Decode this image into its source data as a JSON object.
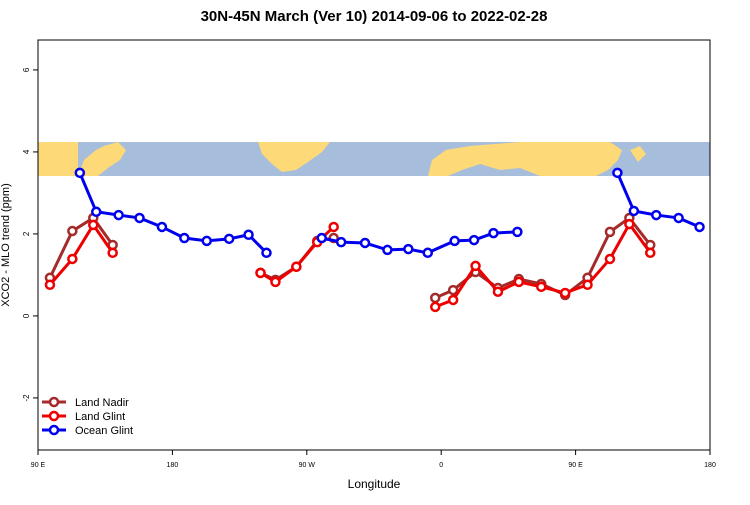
{
  "chart_data": {
    "type": "line",
    "title": "30N-45N March (Ver 10)   2014-09-06 to 2022-02-28",
    "x_label": "Longitude",
    "y_label": "XCO2 - MLO trend (ppm)",
    "xlim": [
      90,
      540
    ],
    "ylim": [
      -3.27,
      6.73
    ],
    "xticks": [
      {
        "value": 90,
        "label": "90 E"
      },
      {
        "value": 180,
        "label": "180"
      },
      {
        "value": 270,
        "label": "90 W"
      },
      {
        "value": 360,
        "label": "0"
      },
      {
        "value": 450,
        "label": "90 E"
      },
      {
        "value": 540,
        "label": "180"
      }
    ],
    "yticks": [
      -2,
      0,
      2,
      4,
      6
    ],
    "legend": "bottom-left",
    "series": [
      {
        "name": "Land Nadir",
        "color": "#a52a2a",
        "x": [
          98,
          113,
          127,
          140,
          null,
          239,
          249,
          263,
          277,
          288,
          null,
          356,
          368,
          383,
          398,
          412,
          427,
          443,
          458,
          473,
          486,
          500
        ],
        "values": [
          0.93,
          2.07,
          2.39,
          1.73,
          null,
          1.05,
          0.88,
          1.2,
          1.83,
          1.9,
          null,
          0.44,
          0.63,
          1.07,
          0.68,
          0.9,
          0.78,
          0.51,
          0.93,
          2.05,
          2.39,
          1.73
        ]
      },
      {
        "name": "Land Glint",
        "color": "#ee0000",
        "x": [
          98,
          113,
          127,
          140,
          null,
          239,
          249,
          263,
          277,
          288,
          null,
          356,
          368,
          383,
          398,
          412,
          427,
          443,
          458,
          473,
          486,
          500
        ],
        "values": [
          0.76,
          1.39,
          2.22,
          1.54,
          null,
          1.05,
          0.83,
          1.2,
          1.8,
          2.17,
          null,
          0.22,
          0.39,
          1.22,
          0.59,
          0.83,
          0.71,
          0.56,
          0.76,
          1.39,
          2.24,
          1.54
        ]
      },
      {
        "name": "Ocean Glint",
        "color": "#0000ee",
        "x": [
          118,
          129,
          144,
          158,
          173,
          188,
          203,
          218,
          231,
          243,
          null,
          280,
          293,
          309,
          324,
          338,
          351,
          369,
          382,
          395,
          411,
          null,
          478,
          489,
          504,
          519,
          533
        ],
        "values": [
          3.49,
          2.54,
          2.46,
          2.39,
          2.17,
          1.9,
          1.83,
          1.88,
          1.98,
          1.54,
          null,
          1.9,
          1.8,
          1.78,
          1.61,
          1.63,
          1.54,
          1.83,
          1.85,
          2.02,
          2.05,
          null,
          3.49,
          2.56,
          2.46,
          2.39,
          2.17
        ]
      }
    ]
  }
}
